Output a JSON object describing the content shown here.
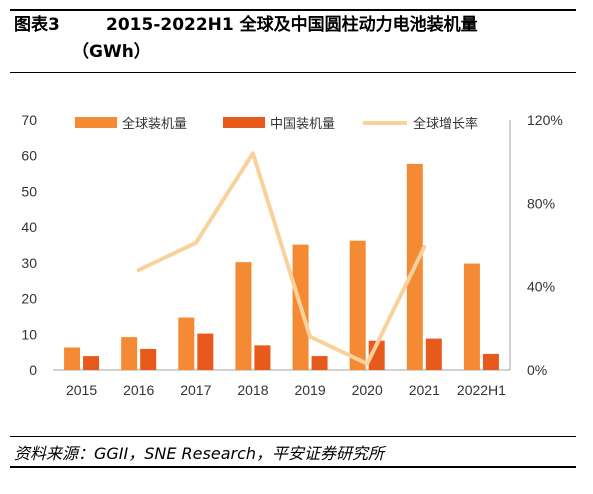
{
  "title": {
    "label": "图表3",
    "line1": "2015-2022H1 全球及中国圆柱动力电池装机量",
    "line2": "（GWh）"
  },
  "source": "资料来源：GGII，SNE Research，平安证券研究所",
  "colors": {
    "global": "#F58A34",
    "china": "#E85A1C",
    "growth": "#F8D29A",
    "axis": "#A6A6A6"
  },
  "chart_data": {
    "type": "bar",
    "categories": [
      "2015",
      "2016",
      "2017",
      "2018",
      "2019",
      "2020",
      "2021",
      "2022H1"
    ],
    "series": [
      {
        "name": "全球装机量",
        "type": "bar",
        "axis": "left",
        "values": [
          6.3,
          9.2,
          14.7,
          30.2,
          35.1,
          36.2,
          57.7,
          29.8
        ]
      },
      {
        "name": "中国装机量",
        "type": "bar",
        "axis": "left",
        "values": [
          3.9,
          5.9,
          10.2,
          6.9,
          3.9,
          8.2,
          8.8,
          4.5
        ]
      },
      {
        "name": "全球增长率",
        "type": "line",
        "axis": "right",
        "values": [
          null,
          0.48,
          0.61,
          1.04,
          0.16,
          0.03,
          0.59,
          null
        ]
      }
    ],
    "ylim": [
      0,
      70
    ],
    "yticks": [
      "0",
      "10",
      "20",
      "30",
      "40",
      "50",
      "60",
      "70"
    ],
    "y2lim": [
      0,
      1.2
    ],
    "y2ticks": [
      "0%",
      "40%",
      "80%",
      "120%"
    ],
    "legend_position": "top"
  }
}
